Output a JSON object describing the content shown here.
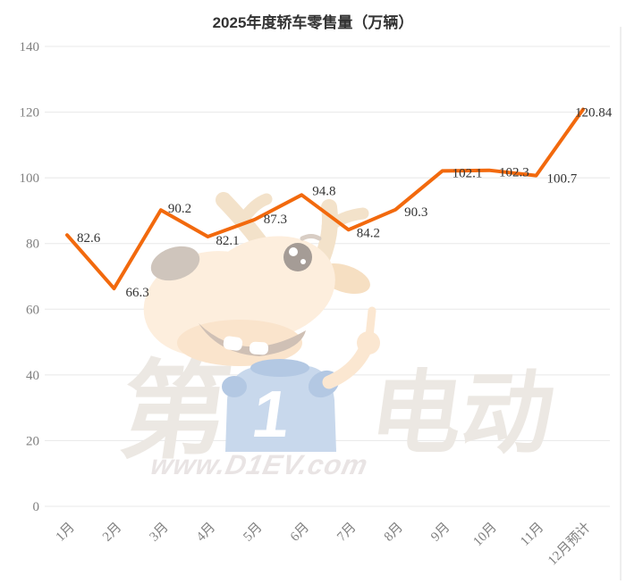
{
  "chart_data": {
    "type": "line",
    "title": "2025年度轿车零售量（万辆）",
    "categories": [
      "1月",
      "2月",
      "3月",
      "4月",
      "5月",
      "6月",
      "7月",
      "8月",
      "9月",
      "10月",
      "11月",
      "12月预计"
    ],
    "values": [
      82.6,
      66.3,
      90.2,
      82.1,
      87.3,
      94.8,
      84.2,
      90.3,
      102.1,
      102.3,
      100.7,
      120.84
    ],
    "value_labels": [
      "82.6",
      "66.3",
      "90.2",
      "82.1",
      "87.3",
      "94.8",
      "84.2",
      "90.3",
      "102.1",
      "102.3",
      "100.7",
      "120.84"
    ],
    "xlabel": "",
    "ylabel": "",
    "ylim": [
      0,
      140
    ],
    "ytick_step": 20,
    "grid": "horizontal",
    "legend": "none",
    "line_color": "#F2690D",
    "label_color": "#333333",
    "axis_text_color": "#808080",
    "grid_color": "#e8e8e8"
  },
  "watermark": {
    "char_first": "第",
    "number": "1",
    "chars_rest": "电动",
    "url": "www.D1EV.com",
    "mascot": "deer-mascot"
  }
}
